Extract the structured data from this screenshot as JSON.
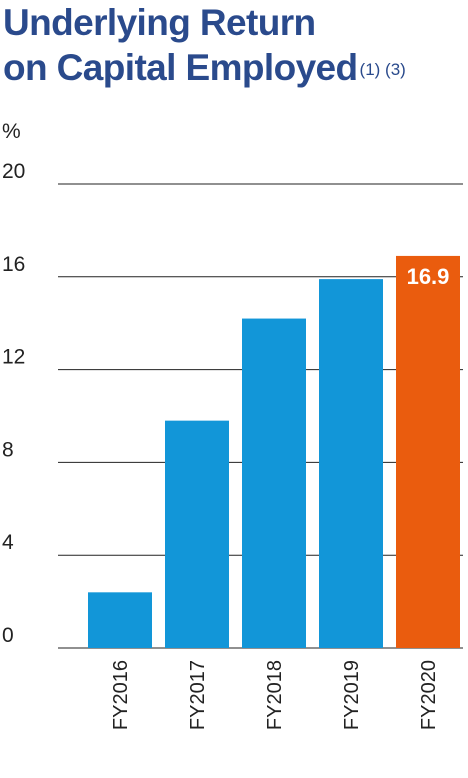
{
  "title": {
    "line1": "Underlying Return",
    "line2": "on Capital Employed",
    "footnotes": "(1) (3)"
  },
  "chart_data": {
    "type": "bar",
    "unit_label": "%",
    "categories": [
      "FY2016",
      "FY2017",
      "FY2018",
      "FY2019",
      "FY2020"
    ],
    "values": [
      2.4,
      9.8,
      14.2,
      15.9,
      16.9
    ],
    "data_labels": [
      "",
      "",
      "",
      "",
      "16.9"
    ],
    "colors": [
      "#1296d8",
      "#1296d8",
      "#1296d8",
      "#1296d8",
      "#ea5c0e"
    ],
    "ylim": [
      0,
      20
    ],
    "yticks": [
      "0",
      "4",
      "8",
      "12",
      "16",
      "20"
    ],
    "grid": true,
    "legend": "none",
    "xlabel": "",
    "ylabel": ""
  }
}
